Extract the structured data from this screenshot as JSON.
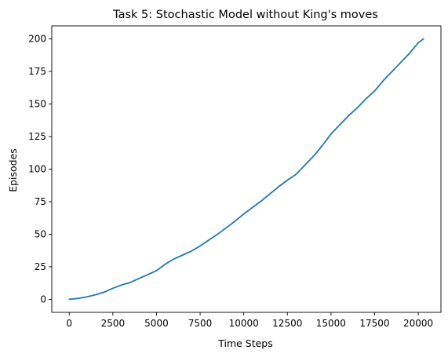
{
  "chart_data": {
    "type": "line",
    "title": "Task 5: Stochastic Model without King's moves",
    "xlabel": "Time Steps",
    "ylabel": "Episodes",
    "xlim": [
      -1000,
      21300
    ],
    "ylim": [
      -10,
      210
    ],
    "xticks": [
      0,
      2500,
      5000,
      7500,
      10000,
      12500,
      15000,
      17500,
      20000
    ],
    "yticks": [
      0,
      25,
      50,
      75,
      100,
      125,
      150,
      175,
      200
    ],
    "grid": false,
    "legend": "none",
    "series": [
      {
        "color": "#1f77b4",
        "x": [
          0,
          500,
          1000,
          1500,
          2000,
          2500,
          3000,
          3500,
          4000,
          4500,
          5000,
          5500,
          6000,
          6500,
          7000,
          7500,
          8000,
          8500,
          9000,
          9500,
          10000,
          10500,
          11000,
          11500,
          12000,
          12500,
          13000,
          13500,
          14000,
          14500,
          15000,
          15500,
          16000,
          16500,
          17000,
          17500,
          18000,
          18500,
          19000,
          19500,
          20000,
          20300
        ],
        "y": [
          0,
          0.7,
          1.8,
          3.5,
          5.5,
          8.5,
          11,
          13,
          16,
          19,
          22,
          27,
          31,
          34,
          37,
          41,
          45.5,
          50,
          55,
          60,
          65.5,
          70.5,
          75.5,
          81,
          86.5,
          91.5,
          96,
          103,
          110,
          118,
          127,
          134,
          141,
          147,
          154,
          160,
          168,
          175,
          182,
          189,
          197,
          200
        ]
      }
    ]
  }
}
